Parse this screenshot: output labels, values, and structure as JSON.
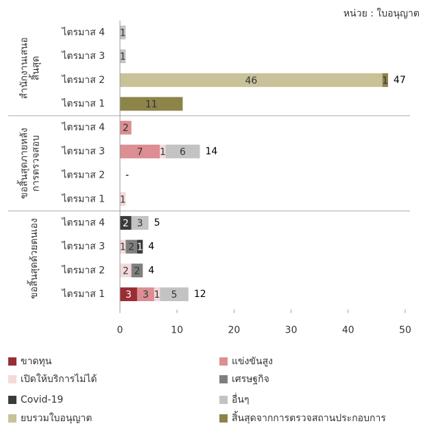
{
  "chart_data": {
    "type": "stacked-barh",
    "unit_note": "หน่วย : ใบอนุญาต",
    "groups": [
      {
        "name": [
          "สำนักงานเสนอ",
          "สิ้นสุด"
        ],
        "categories": [
          "ไตรมาส 4",
          "ไตรมาส 3",
          "ไตรมาส 2",
          "ไตรมาส 1"
        ]
      },
      {
        "name": [
          "ขอสิ้นสุดภายหลัง",
          "การตรวจสอบ"
        ],
        "categories": [
          "ไตรมาส 4",
          "ไตรมาส 3",
          "ไตรมาส 2",
          "ไตรมาส 1"
        ]
      },
      {
        "name": [
          "ขอสิ้นสุดด้วยตนเอง"
        ],
        "categories": [
          "ไตรมาส 4",
          "ไตรมาส 3",
          "ไตรมาส 2",
          "ไตรมาส 1"
        ]
      }
    ],
    "series": [
      {
        "name": "ขาดทุน",
        "color": "#9a2d33",
        "values": [
          null,
          null,
          null,
          null,
          null,
          null,
          null,
          null,
          null,
          null,
          null,
          3
        ]
      },
      {
        "name": "แข่งขันสูง",
        "color": "#dc8e92",
        "values": [
          null,
          null,
          null,
          null,
          2,
          7,
          null,
          null,
          null,
          null,
          null,
          3
        ]
      },
      {
        "name": "เปิดให้บริการไม่ได้",
        "color": "#f4d9db",
        "values": [
          null,
          null,
          null,
          null,
          null,
          1,
          null,
          1,
          null,
          1,
          2,
          1
        ]
      },
      {
        "name": "เศรษฐกิจ",
        "color": "#7f7f7f",
        "values": [
          null,
          null,
          null,
          null,
          null,
          null,
          null,
          null,
          null,
          2,
          2,
          null
        ]
      },
      {
        "name": "Covid-19",
        "color": "#3b3b3b",
        "values": [
          null,
          null,
          null,
          null,
          null,
          null,
          null,
          null,
          2,
          1,
          null,
          null
        ]
      },
      {
        "name": "อื่นๆ",
        "color": "#c3c3c3",
        "values": [
          1,
          1,
          null,
          null,
          null,
          6,
          null,
          null,
          3,
          null,
          null,
          5
        ]
      },
      {
        "name": "ยบรวมใบอนุญาต",
        "color": "#c9c197",
        "values": [
          null,
          null,
          46,
          null,
          null,
          null,
          null,
          null,
          null,
          null,
          null,
          null
        ]
      },
      {
        "name": "สิ้นสุดจากการตรวจสถานประกอบการ",
        "color": "#8c8449",
        "values": [
          null,
          null,
          1,
          11,
          null,
          null,
          null,
          null,
          null,
          null,
          null,
          null
        ]
      }
    ],
    "totals": [
      null,
      null,
      47,
      null,
      null,
      14,
      "-",
      null,
      5,
      4,
      4,
      12
    ],
    "xlim": [
      0,
      50
    ],
    "xticks": [
      0,
      10,
      20,
      30,
      40,
      50
    ]
  }
}
